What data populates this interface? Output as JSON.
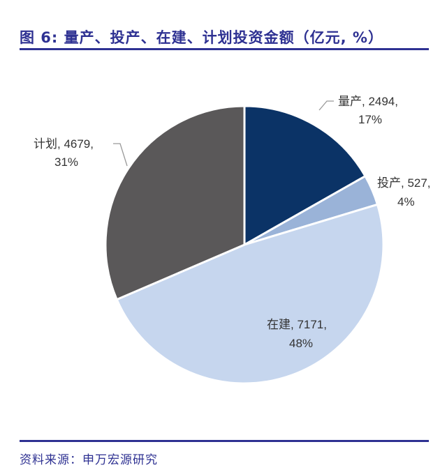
{
  "title": "图 6: 量产、投产、在建、计划投资金额（亿元, %）",
  "source": "资料来源：申万宏源研究",
  "colors": {
    "accent": "#2E3192",
    "slices": [
      "#0B3366",
      "#9AB3D8",
      "#C6D6EE",
      "#5A5859"
    ],
    "leader": "#999999"
  },
  "labels": {
    "s0_line1": "量产, 2494,",
    "s0_line2": "17%",
    "s1_line1": "投产, 527,",
    "s1_line2": "4%",
    "s2_line1": "在建, 7171,",
    "s2_line2": "48%",
    "s3_line1": "计划, 4679,",
    "s3_line2": "31%"
  },
  "chart_data": {
    "type": "pie",
    "title": "图 6: 量产、投产、在建、计划投资金额（亿元, %）",
    "categories": [
      "量产",
      "投产",
      "在建",
      "计划"
    ],
    "values": [
      2494,
      527,
      7171,
      4679
    ],
    "percentages": [
      17,
      4,
      48,
      31
    ],
    "unit": "亿元",
    "start_angle": "12 o'clock, clockwise",
    "legend": "none (data labels with leader lines)",
    "source": "资料来源：申万宏源研究"
  }
}
